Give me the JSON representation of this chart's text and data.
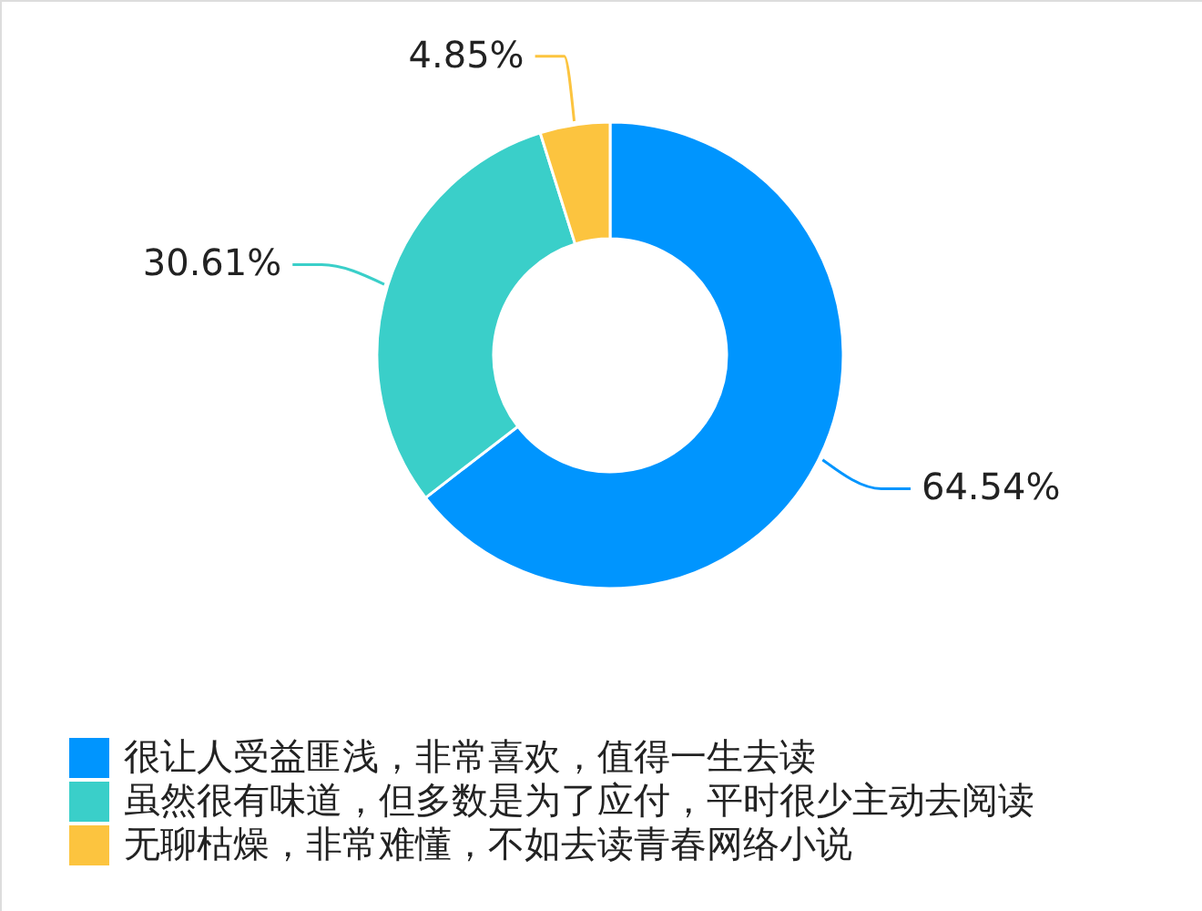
{
  "chart_data": {
    "type": "donut",
    "categories": [
      "很让人受益匪浅，非常喜欢，值得一生去读",
      "虽然很有味道，但多数是为了应付，平时很少主动去阅读",
      "无聊枯燥，非常难懂，不如去读青春网络小说"
    ],
    "values": [
      64.54,
      30.61,
      4.85
    ],
    "colors": [
      "#0095fe",
      "#3acfc9",
      "#fcc43f"
    ],
    "value_labels": [
      "64.54%",
      "30.61%",
      "4.85%"
    ],
    "legend": "bottom"
  }
}
